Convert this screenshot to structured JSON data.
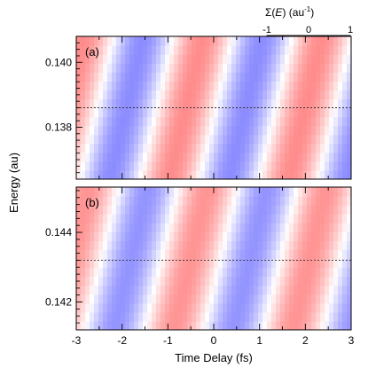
{
  "colorbar": {
    "label_prefix": "Σ(",
    "label_var": "E",
    "label_suffix": ") (au",
    "label_exp": "-1",
    "label_close": ")",
    "ticks": [
      "-1",
      "0",
      "1"
    ],
    "min": -1,
    "max": 1,
    "colors": {
      "neg": "#ff0000",
      "zero": "#ffffff",
      "pos": "#0000ff"
    }
  },
  "chart_data": [
    {
      "type": "heatmap",
      "panel_label": "(a)",
      "xlabel": "",
      "ylabel": "Energy (au)",
      "xlim": [
        -3,
        3
      ],
      "ylim": [
        0.1364,
        0.1408
      ],
      "yticks": [
        0.138,
        0.14
      ],
      "ytick_labels": [
        "0.138",
        "0.140"
      ],
      "dashed_line_energy": 0.1386,
      "pattern": {
        "amplitude": 0.45,
        "period_fs": 2.6,
        "stripe_centers_fs": {
          "positive": [
            -1.9,
            0.7
          ],
          "negative": [
            -0.6,
            2.0
          ]
        },
        "stripe_tilt_fs_per_au": 165
      }
    },
    {
      "type": "heatmap",
      "panel_label": "(b)",
      "xlabel": "Time Delay (fs)",
      "ylabel": "Energy (au)",
      "xlim": [
        -3,
        3
      ],
      "ylim": [
        0.1412,
        0.1453
      ],
      "yticks": [
        0.142,
        0.144
      ],
      "ytick_labels": [
        "0.142",
        "0.144"
      ],
      "xticks": [
        -3,
        -2,
        -1,
        0,
        1,
        2,
        3
      ],
      "xtick_labels": [
        "-3",
        "-2",
        "-1",
        "0",
        "1",
        "2",
        "3"
      ],
      "dashed_line_energy": 0.1432,
      "pattern": {
        "amplitude": 0.42,
        "period_fs": 2.6,
        "stripe_centers_fs": {
          "positive": [
            -1.8,
            0.8
          ],
          "negative": [
            -0.5,
            2.1
          ]
        },
        "stripe_tilt_fs_per_au": 180
      }
    }
  ]
}
